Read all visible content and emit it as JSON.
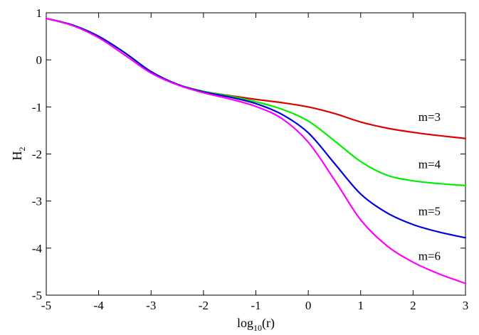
{
  "chart_data": {
    "type": "line",
    "xlabel": {
      "base": "log",
      "sub": "10",
      "rest": "(r)"
    },
    "ylabel": {
      "base": "H",
      "sub": "2"
    },
    "xlim": [
      -5,
      3
    ],
    "ylim": [
      -5,
      1
    ],
    "grid": false,
    "xticks": [
      {
        "value": -5,
        "label": "-5"
      },
      {
        "value": -4,
        "label": "-4"
      },
      {
        "value": -3,
        "label": "-3"
      },
      {
        "value": -2,
        "label": "-2"
      },
      {
        "value": -1,
        "label": "-1"
      },
      {
        "value": 0,
        "label": "0"
      },
      {
        "value": 1,
        "label": "1"
      },
      {
        "value": 2,
        "label": "2"
      },
      {
        "value": 3,
        "label": "3"
      }
    ],
    "yticks": [
      {
        "value": 1,
        "label": "1"
      },
      {
        "value": 0,
        "label": "0"
      },
      {
        "value": -1,
        "label": "-1"
      },
      {
        "value": -2,
        "label": "-2"
      },
      {
        "value": -3,
        "label": "-3"
      },
      {
        "value": -4,
        "label": "-4"
      },
      {
        "value": -5,
        "label": "-5"
      }
    ],
    "series": [
      {
        "name": "m=3",
        "color": "#dd0000",
        "label_at": [
          2.1,
          -1.3
        ],
        "points": [
          [
            -5,
            0.88
          ],
          [
            -4.5,
            0.74
          ],
          [
            -4,
            0.5
          ],
          [
            -3.5,
            0.15
          ],
          [
            -3,
            -0.25
          ],
          [
            -2.5,
            -0.52
          ],
          [
            -2,
            -0.67
          ],
          [
            -1.5,
            -0.76
          ],
          [
            -1,
            -0.84
          ],
          [
            -0.5,
            -0.91
          ],
          [
            0,
            -1.0
          ],
          [
            0.5,
            -1.14
          ],
          [
            1,
            -1.32
          ],
          [
            1.5,
            -1.45
          ],
          [
            2,
            -1.54
          ],
          [
            2.5,
            -1.61
          ],
          [
            3,
            -1.67
          ]
        ]
      },
      {
        "name": "m=4",
        "color": "#00ee00",
        "label_at": [
          2.1,
          -2.3
        ],
        "points": [
          [
            -5,
            0.88
          ],
          [
            -4.5,
            0.74
          ],
          [
            -4,
            0.5
          ],
          [
            -3.5,
            0.15
          ],
          [
            -3,
            -0.25
          ],
          [
            -2.5,
            -0.52
          ],
          [
            -2,
            -0.67
          ],
          [
            -1.5,
            -0.77
          ],
          [
            -1,
            -0.89
          ],
          [
            -0.5,
            -1.05
          ],
          [
            0,
            -1.3
          ],
          [
            0.5,
            -1.72
          ],
          [
            1,
            -2.16
          ],
          [
            1.5,
            -2.45
          ],
          [
            2,
            -2.57
          ],
          [
            2.5,
            -2.63
          ],
          [
            3,
            -2.67
          ]
        ]
      },
      {
        "name": "m=5",
        "color": "#0000dd",
        "label_at": [
          2.1,
          -3.3
        ],
        "points": [
          [
            -5,
            0.88
          ],
          [
            -4.5,
            0.74
          ],
          [
            -4,
            0.5
          ],
          [
            -3.5,
            0.15
          ],
          [
            -3,
            -0.25
          ],
          [
            -2.5,
            -0.52
          ],
          [
            -2,
            -0.68
          ],
          [
            -1.5,
            -0.79
          ],
          [
            -1,
            -0.93
          ],
          [
            -0.5,
            -1.16
          ],
          [
            0,
            -1.55
          ],
          [
            0.5,
            -2.2
          ],
          [
            1,
            -2.85
          ],
          [
            1.5,
            -3.25
          ],
          [
            2,
            -3.5
          ],
          [
            2.5,
            -3.66
          ],
          [
            3,
            -3.78
          ]
        ]
      },
      {
        "name": "m=6",
        "color": "#ff00ff",
        "label_at": [
          2.1,
          -4.25
        ],
        "points": [
          [
            -5,
            0.88
          ],
          [
            -4.5,
            0.73
          ],
          [
            -4,
            0.47
          ],
          [
            -3.5,
            0.1
          ],
          [
            -3,
            -0.28
          ],
          [
            -2.5,
            -0.53
          ],
          [
            -2,
            -0.7
          ],
          [
            -1.5,
            -0.83
          ],
          [
            -1,
            -0.99
          ],
          [
            -0.5,
            -1.25
          ],
          [
            0,
            -1.75
          ],
          [
            0.5,
            -2.55
          ],
          [
            1,
            -3.4
          ],
          [
            1.5,
            -3.95
          ],
          [
            2,
            -4.3
          ],
          [
            2.5,
            -4.55
          ],
          [
            3,
            -4.75
          ]
        ]
      }
    ]
  }
}
